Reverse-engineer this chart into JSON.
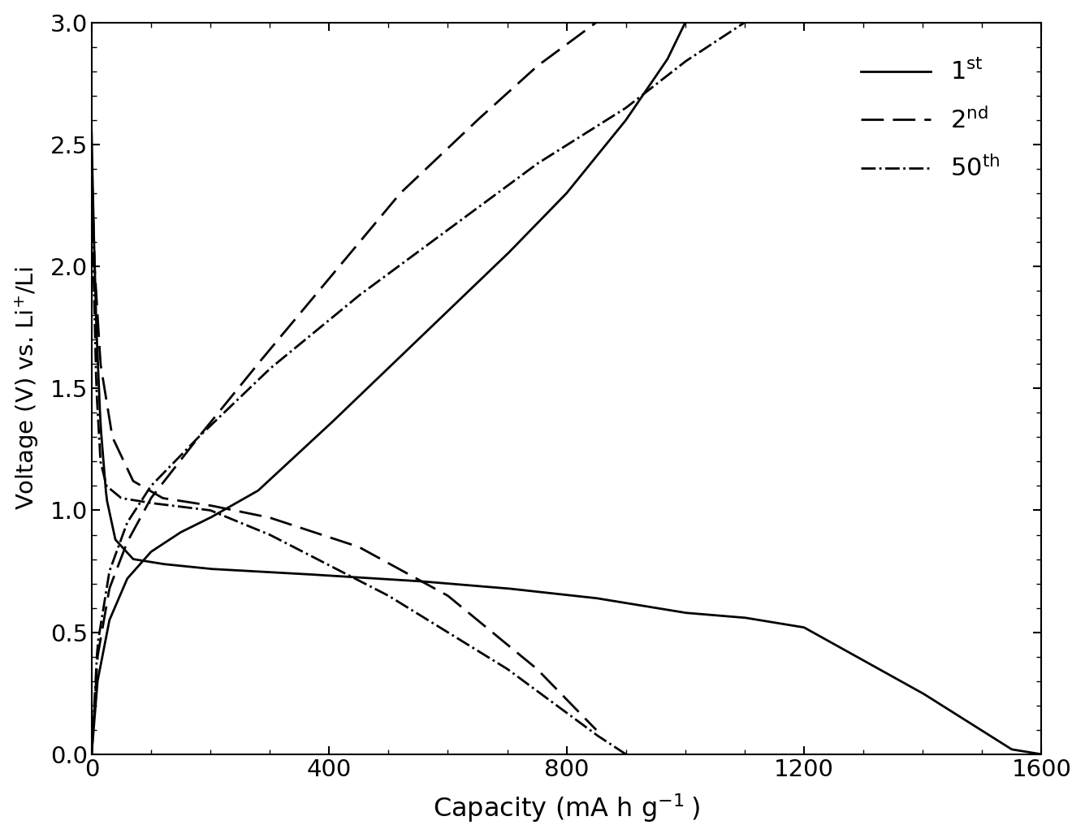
{
  "xlabel": "Capacity (mA h g$^{-1}$ )",
  "ylabel": "Voltage (V) vs. Li$^{+}$/Li",
  "xlim": [
    0,
    1600
  ],
  "ylim": [
    0.0,
    3.0
  ],
  "xticks": [
    0,
    400,
    800,
    1200,
    1600
  ],
  "yticks": [
    0.0,
    0.5,
    1.0,
    1.5,
    2.0,
    2.5,
    3.0
  ],
  "background_color": "#ffffff",
  "line_color": "#000000",
  "legend_labels": [
    "1$^{\\rm st}$",
    "2$^{\\rm nd}$",
    "50$^{\\rm th}$"
  ],
  "linewidth": 2.0
}
